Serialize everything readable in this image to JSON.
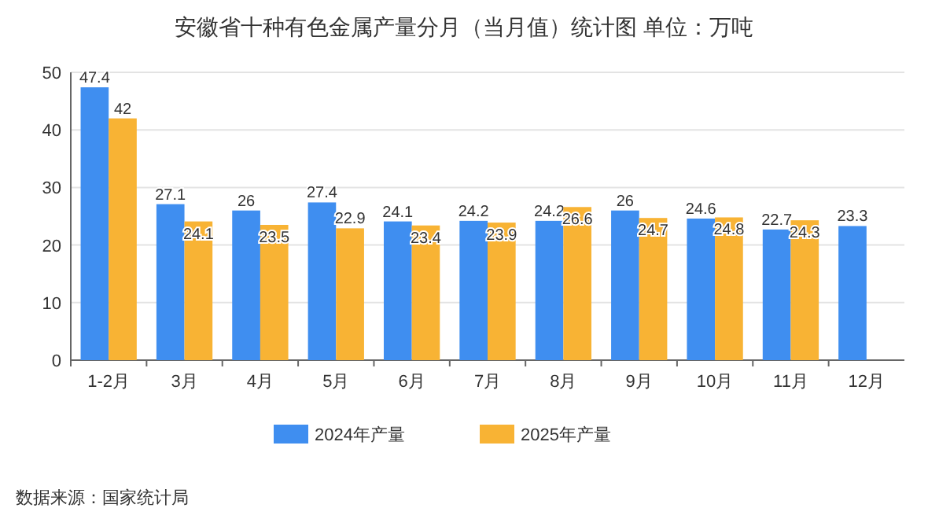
{
  "chart_data": {
    "type": "bar",
    "title": "安徽省十种有色金属产量分月（当月值）统计图 单位：万吨",
    "categories": [
      "1-2月",
      "3月",
      "4月",
      "5月",
      "6月",
      "7月",
      "8月",
      "9月",
      "10月",
      "11月",
      "12月"
    ],
    "series": [
      {
        "name": "2024年产量",
        "color": "#3f8ef0",
        "values": [
          47.4,
          27.1,
          26,
          27.4,
          24.1,
          24.2,
          24.2,
          26,
          24.6,
          22.7,
          23.3
        ]
      },
      {
        "name": "2025年产量",
        "color": "#f8b334",
        "values": [
          42,
          24.1,
          23.5,
          22.9,
          23.4,
          23.9,
          26.6,
          24.7,
          24.8,
          24.3,
          null
        ]
      }
    ],
    "ylim": [
      0,
      50
    ],
    "yticks": [
      0,
      10,
      20,
      30,
      40,
      50
    ],
    "grid": "y",
    "legend": "bottom",
    "data_labels": true,
    "annotations": [
      "数据来源：国家统计局"
    ]
  }
}
